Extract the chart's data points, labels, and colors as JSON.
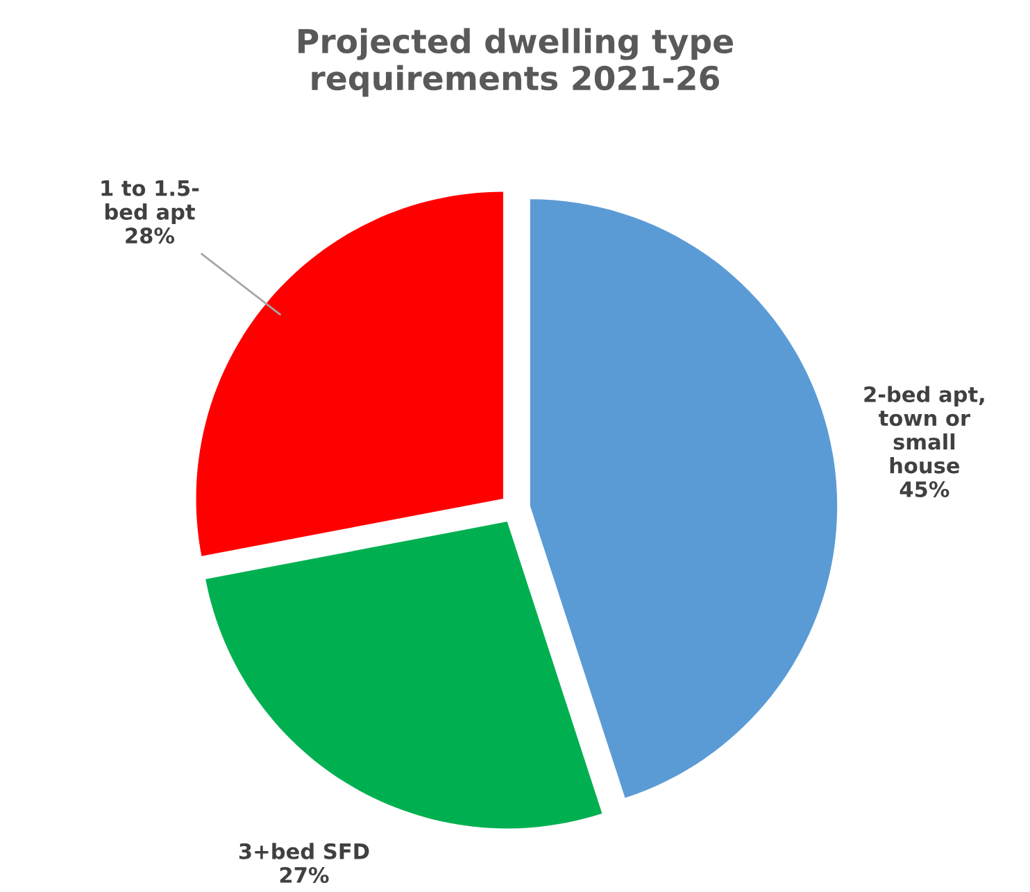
{
  "chart_data": {
    "type": "pie",
    "title": "Projected dwelling type\nrequirements 2021-26",
    "categories": [
      "2-bed apt,\ntown or\nsmall\nhouse",
      "3+bed SFD",
      "1 to 1.5-\nbed apt"
    ],
    "values": [
      45,
      27,
      28
    ],
    "colors": [
      "#5b9bd5",
      "#00b050",
      "#ff0000"
    ],
    "value_labels": [
      "45%",
      "27%",
      "28%"
    ],
    "legend": false
  }
}
